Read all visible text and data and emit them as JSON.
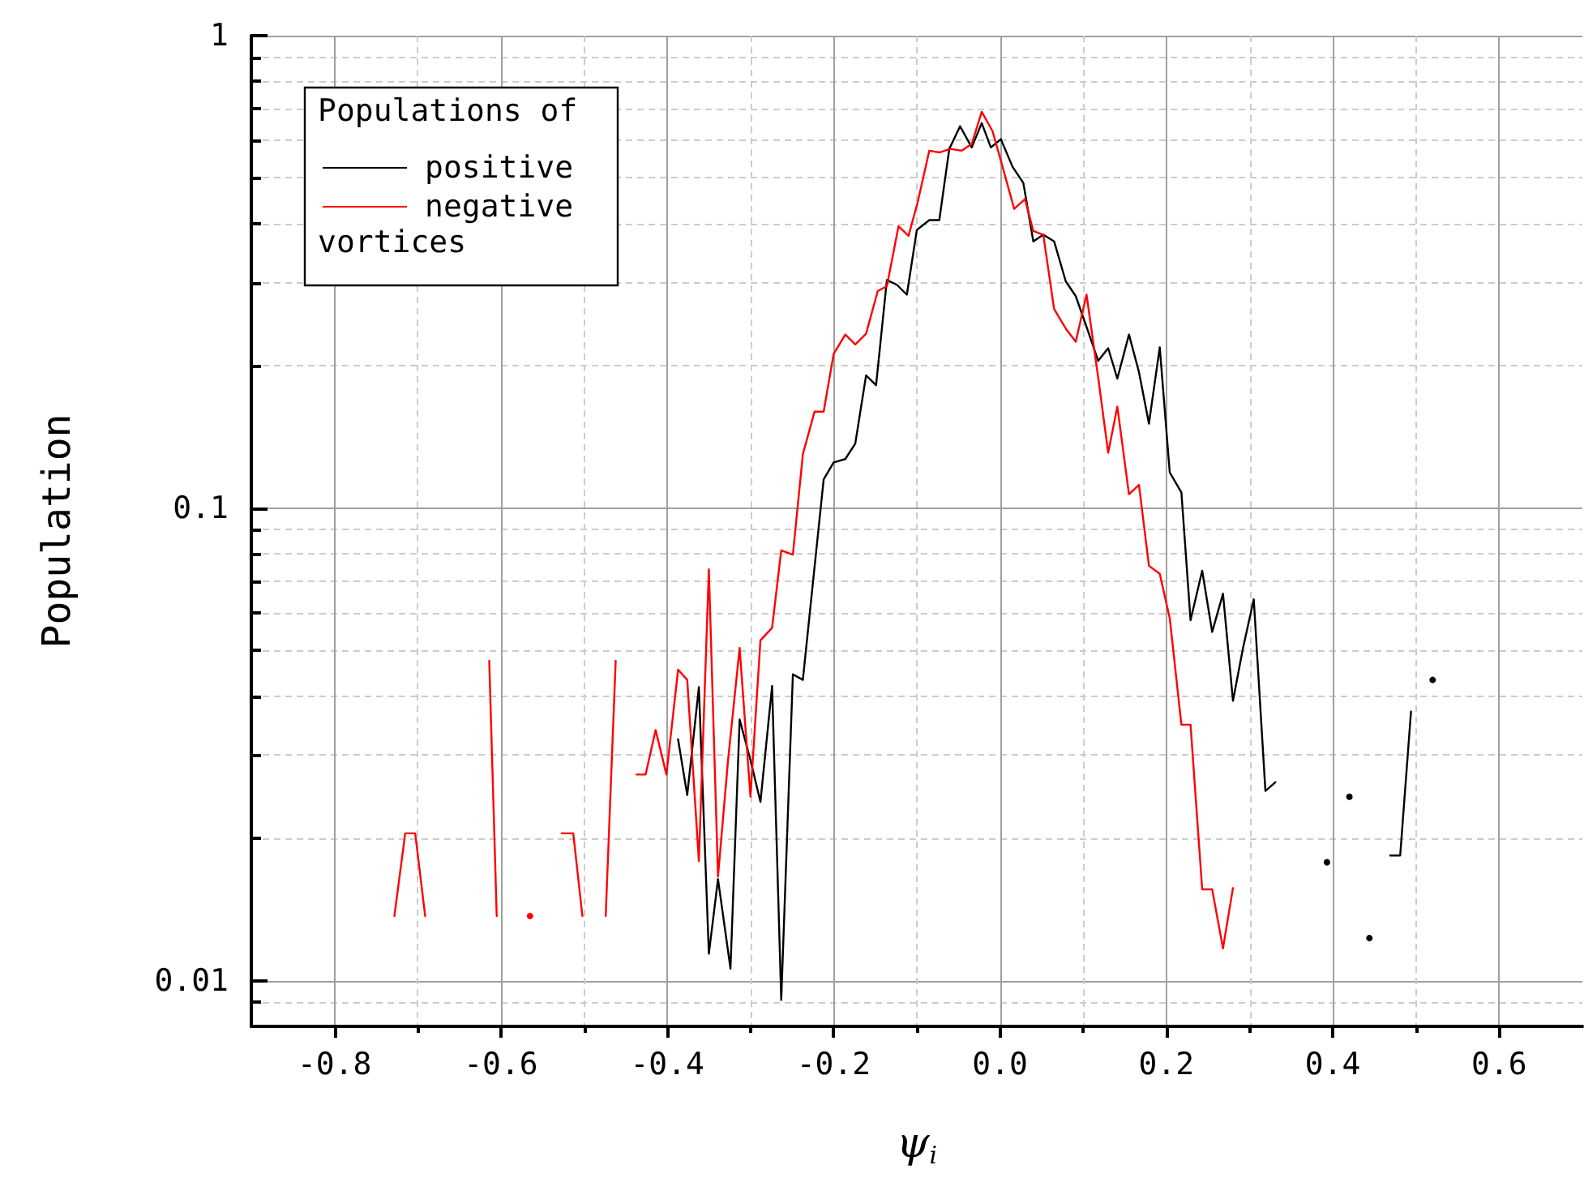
{
  "chart_data": {
    "type": "line",
    "xlabel": "ψ$_{i}$",
    "ylabel": "Population",
    "legend_title": "Populations of",
    "annotations": [
      "vortices"
    ],
    "xlim": [
      -0.9,
      0.7
    ],
    "xticks": [
      -0.8,
      -0.6,
      -0.4,
      -0.2,
      {
        "value": 0,
        "label": "0.0"
      },
      0.2,
      0.4,
      0.6
    ],
    "ylim": [
      0.008,
      1
    ],
    "yticks": [
      0.01,
      0.1,
      1
    ],
    "log": "y",
    "grid": true,
    "legend": "top left",
    "series": [
      {
        "name": "positive",
        "color": "#000000",
        "x": [
          -0.387,
          -0.376,
          -0.362,
          -0.35,
          -0.339,
          -0.324,
          -0.313,
          -0.3,
          -0.288,
          -0.274,
          -0.263,
          -0.249,
          -0.237,
          -0.225,
          -0.212,
          -0.2,
          -0.186,
          -0.174,
          -0.161,
          -0.149,
          -0.136,
          -0.124,
          -0.112,
          -0.1,
          -0.085,
          -0.073,
          -0.061,
          -0.048,
          -0.034,
          -0.022,
          -0.011,
          0.001,
          0.015,
          0.028,
          0.04,
          0.052,
          0.065,
          0.079,
          0.091,
          0.104,
          0.118,
          0.13,
          0.141,
          0.155,
          0.167,
          0.179,
          0.192,
          0.204,
          0.218,
          0.229,
          0.243,
          0.255,
          0.268,
          0.28,
          0.292,
          0.305,
          0.319,
          0.331,
          0.345,
          0.393,
          0.405,
          0.42,
          0.43,
          0.444,
          0.455,
          0.469,
          0.481,
          0.494,
          0.506,
          0.52
        ],
        "values": [
          0.0324,
          0.0247,
          0.0418,
          0.0114,
          0.0164,
          0.0106,
          0.0357,
          0.0293,
          0.0239,
          0.042,
          0.0091,
          0.0445,
          0.0433,
          0.0693,
          0.115,
          0.125,
          0.127,
          0.137,
          0.191,
          0.182,
          0.304,
          0.297,
          0.283,
          0.388,
          0.407,
          0.407,
          0.576,
          0.643,
          0.58,
          0.653,
          0.58,
          0.604,
          0.528,
          0.488,
          0.367,
          0.379,
          0.367,
          0.302,
          0.281,
          0.242,
          0.205,
          0.218,
          0.188,
          0.233,
          0.194,
          0.151,
          0.219,
          0.119,
          0.108,
          0.0579,
          0.0737,
          0.0547,
          0.0659,
          0.0391,
          0.0505,
          0.0641,
          0.0252,
          0.0263,
          null,
          0.0178,
          null,
          0.0245,
          null,
          0.0123,
          null,
          0.0184,
          0.0184,
          0.0371,
          null,
          0.0433
        ]
      },
      {
        "name": "negative",
        "color": "#ff0000",
        "x": [
          -0.728,
          -0.715,
          -0.703,
          -0.691,
          -0.68,
          -0.614,
          -0.605,
          -0.59,
          -0.565,
          -0.55,
          -0.527,
          -0.513,
          -0.502,
          -0.49,
          -0.474,
          -0.462,
          -0.45,
          -0.437,
          -0.426,
          -0.414,
          -0.401,
          -0.387,
          -0.376,
          -0.362,
          -0.35,
          -0.339,
          -0.327,
          -0.313,
          -0.3,
          -0.288,
          -0.274,
          -0.263,
          -0.249,
          -0.237,
          -0.223,
          -0.212,
          -0.2,
          -0.186,
          -0.174,
          -0.161,
          -0.147,
          -0.136,
          -0.122,
          -0.11,
          -0.099,
          -0.085,
          -0.073,
          -0.06,
          -0.046,
          -0.034,
          -0.022,
          -0.009,
          0.003,
          0.017,
          0.03,
          0.04,
          0.052,
          0.065,
          0.079,
          0.091,
          0.104,
          0.118,
          0.13,
          0.141,
          0.155,
          0.167,
          0.179,
          0.192,
          0.204,
          0.218,
          0.229,
          0.243,
          0.255,
          0.268,
          0.28
        ],
        "values": [
          0.0137,
          0.0205,
          0.0205,
          0.0137,
          null,
          0.0475,
          0.0137,
          null,
          0.0137,
          null,
          0.0205,
          0.0205,
          0.0137,
          null,
          0.0137,
          0.0475,
          null,
          0.0273,
          0.0273,
          0.0339,
          0.0273,
          0.0455,
          0.0433,
          0.0179,
          0.0742,
          0.0166,
          0.0292,
          0.0506,
          0.0245,
          0.0525,
          0.0558,
          0.0814,
          0.0797,
          0.13,
          0.16,
          0.16,
          0.212,
          0.233,
          0.222,
          0.234,
          0.288,
          0.295,
          0.395,
          0.377,
          0.444,
          0.571,
          0.566,
          0.576,
          0.571,
          0.59,
          0.69,
          0.628,
          0.528,
          0.43,
          0.451,
          0.386,
          0.379,
          0.264,
          0.24,
          0.225,
          0.283,
          0.189,
          0.131,
          0.164,
          0.107,
          0.112,
          0.0755,
          0.0726,
          0.0585,
          0.0348,
          0.0348,
          0.0156,
          0.0156,
          0.0117,
          0.0157
        ]
      }
    ]
  }
}
